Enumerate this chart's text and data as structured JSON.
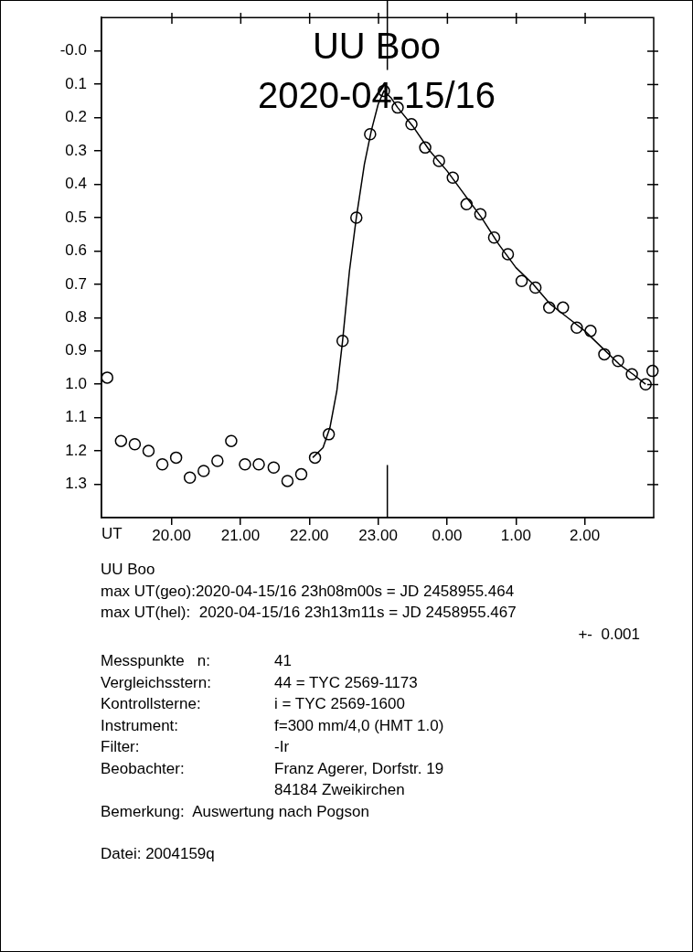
{
  "chart_data": {
    "type": "scatter",
    "title": "UU Boo",
    "subtitle": "2020-04-15/16",
    "xlabel": "UT",
    "xlim": [
      "2020-04-15T18:59",
      "2020-04-16T03:00"
    ],
    "ylim": [
      1.4,
      -0.1
    ],
    "xticks": [
      {
        "value": "2020-04-15T20:00",
        "label": "20.00"
      },
      {
        "value": "2020-04-15T21:00",
        "label": "21.00"
      },
      {
        "value": "2020-04-15T22:00",
        "label": "22.00"
      },
      {
        "value": "2020-04-15T23:00",
        "label": "23.00"
      },
      {
        "value": "2020-04-16T00:00",
        "label": "0.00"
      },
      {
        "value": "2020-04-16T01:00",
        "label": "1.00"
      },
      {
        "value": "2020-04-16T02:00",
        "label": "2.00"
      }
    ],
    "yticks": [
      {
        "value": 0,
        "label": "-0.0"
      },
      0.1,
      0.2,
      0.3,
      0.4,
      0.5,
      0.6,
      0.7,
      0.8,
      0.9,
      {
        "value": 1,
        "label": "1.0"
      },
      1.1,
      1.2,
      1.3
    ],
    "grid": false,
    "legend": false,
    "series": [
      {
        "type": "scatter",
        "marker": "circle",
        "color": "#000000",
        "x": [
          "2020-04-15T19:04",
          "2020-04-15T19:16",
          "2020-04-15T19:28",
          "2020-04-15T19:40",
          "2020-04-15T19:52",
          "2020-04-15T20:04",
          "2020-04-15T20:16",
          "2020-04-15T20:28",
          "2020-04-15T20:40",
          "2020-04-15T20:52",
          "2020-04-15T21:04",
          "2020-04-15T21:16",
          "2020-04-15T21:29",
          "2020-04-15T21:41",
          "2020-04-15T21:53",
          "2020-04-15T22:05",
          "2020-04-15T22:17",
          "2020-04-15T22:29",
          "2020-04-15T22:41",
          "2020-04-15T22:53",
          "2020-04-15T23:05",
          "2020-04-15T23:17",
          "2020-04-15T23:29",
          "2020-04-15T23:41",
          "2020-04-15T23:53",
          "2020-04-16T00:05",
          "2020-04-16T00:17",
          "2020-04-16T00:29",
          "2020-04-16T00:41",
          "2020-04-16T00:53",
          "2020-04-16T01:05",
          "2020-04-16T01:17",
          "2020-04-16T01:29",
          "2020-04-16T01:41",
          "2020-04-16T01:53",
          "2020-04-16T02:05",
          "2020-04-16T02:17",
          "2020-04-16T02:29",
          "2020-04-16T02:41",
          "2020-04-16T02:53",
          "2020-04-16T02:59"
        ],
        "values": [
          0.98,
          1.17,
          1.18,
          1.2,
          1.24,
          1.22,
          1.28,
          1.26,
          1.23,
          1.17,
          1.24,
          1.24,
          1.25,
          1.29,
          1.27,
          1.22,
          1.15,
          0.87,
          0.5,
          0.25,
          0.12,
          0.17,
          0.22,
          0.29,
          0.33,
          0.38,
          0.46,
          0.49,
          0.56,
          0.61,
          0.69,
          0.71,
          0.77,
          0.77,
          0.83,
          0.84,
          0.91,
          0.93,
          0.97,
          1.0,
          0.96
        ]
      },
      {
        "type": "line",
        "marker": "none",
        "color": "#000000",
        "x": [
          "2020-04-15T22:03",
          "2020-04-15T22:12",
          "2020-04-15T22:18",
          "2020-04-15T22:24",
          "2020-04-15T22:29",
          "2020-04-15T22:35",
          "2020-04-15T22:41",
          "2020-04-15T22:48",
          "2020-04-15T22:54",
          "2020-04-15T23:00",
          "2020-04-15T23:05",
          "2020-04-15T23:11",
          "2020-04-15T23:17",
          "2020-04-15T23:30",
          "2020-04-15T23:45",
          "2020-04-16T00:00",
          "2020-04-16T00:15",
          "2020-04-16T00:30",
          "2020-04-16T00:45",
          "2020-04-16T01:00",
          "2020-04-16T01:15",
          "2020-04-16T01:30",
          "2020-04-16T01:45",
          "2020-04-16T02:00",
          "2020-04-16T02:15",
          "2020-04-16T02:30",
          "2020-04-16T02:42",
          "2020-04-16T02:53"
        ],
        "values": [
          1.22,
          1.19,
          1.13,
          1.02,
          0.87,
          0.66,
          0.5,
          0.34,
          0.24,
          0.16,
          0.12,
          0.14,
          0.17,
          0.225,
          0.3,
          0.36,
          0.43,
          0.5,
          0.58,
          0.65,
          0.7,
          0.76,
          0.8,
          0.84,
          0.89,
          0.94,
          0.97,
          1.0
        ]
      }
    ],
    "ref_lines": [
      {
        "axis": "x",
        "value": "2020-04-15T23:08"
      }
    ],
    "annotations": [
      "UU Boo",
      "max UT(geo):2020-04-15/16 23h08m00s = JD 2458955.464",
      "max UT(hel):  2020-04-15/16 23h13m11s = JD 2458955.467",
      "+-  0.001\t",
      "Messpunkte   n:\t41",
      "Vergleichsstern:\t44 = TYC 2569-1173",
      "Kontrollsterne:\ti = TYC 2569-1600",
      "Instrument:\tf=300 mm/4,0 (HMT 1.0)",
      "Filter:\t-Ir",
      "Beobachter:\tFranz Agerer, Dorfstr. 19",
      "\t84184 Zweikirchen",
      "Bemerkung:  Auswertung nach Pogson",
      "Datei: 2004159q"
    ]
  }
}
